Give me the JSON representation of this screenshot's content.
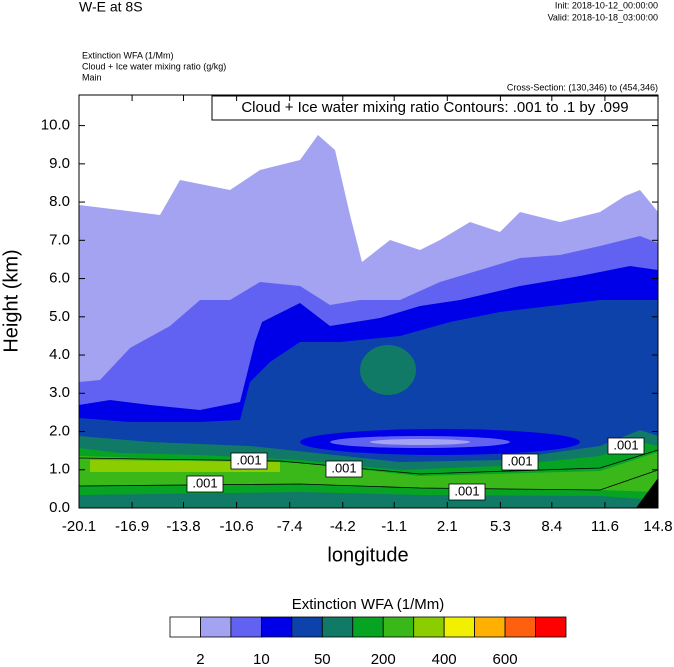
{
  "chart_data": {
    "type": "contour",
    "title": "W-E at 8S",
    "init": "Init: 2018-10-12_00:00:00",
    "valid": "Valid: 2018-10-18_03:00:00",
    "subtitles": [
      "Extinction WFA   (1/Mm)",
      "Cloud + Ice water mixing ratio   (g/kg)",
      "Main"
    ],
    "cross_section": "Cross-Section: (130,346) to (454,346)",
    "contour_note": "Cloud + Ice water mixing ratio Contours: .001 to .1 by .099",
    "contour_labels": [
      ".001",
      ".001",
      ".001",
      ".001",
      ".001",
      ".001"
    ],
    "x_label": "longitude",
    "y_label": "Height (km)",
    "xlim": [
      -20.1,
      14.8
    ],
    "xticks": [
      -20.1,
      -16.9,
      -13.8,
      -10.6,
      -7.4,
      -4.2,
      -1.1,
      2.1,
      5.3,
      8.4,
      11.6,
      14.8
    ],
    "ylim": [
      0,
      10.8
    ],
    "yticks": [
      {
        "value": 0,
        "label": "0.0"
      },
      {
        "value": 1,
        "label": "1.0"
      },
      {
        "value": 2,
        "label": "2.0"
      },
      {
        "value": 3,
        "label": "3.0"
      },
      {
        "value": 4,
        "label": "4.0"
      },
      {
        "value": 5,
        "label": "5.0"
      },
      {
        "value": 6,
        "label": "6.0"
      },
      {
        "value": 7,
        "label": "7.0"
      },
      {
        "value": 8,
        "label": "8.0"
      },
      {
        "value": 9,
        "label": "9.0"
      },
      {
        "value": 10,
        "label": "10.0"
      }
    ],
    "colorbar": {
      "title": "Extinction WFA  (1/Mm)",
      "colors": [
        "#ffffff",
        "#a3a3f2",
        "#6262f2",
        "#0000e8",
        "#0c42aa",
        "#117a66",
        "#07a323",
        "#3ab81a",
        "#8ccd00",
        "#f0f000",
        "#ffb000",
        "#ff6010",
        "#ff0000"
      ],
      "levels": [
        2,
        null,
        10,
        null,
        50,
        null,
        200,
        null,
        400,
        null,
        600,
        null
      ]
    }
  }
}
